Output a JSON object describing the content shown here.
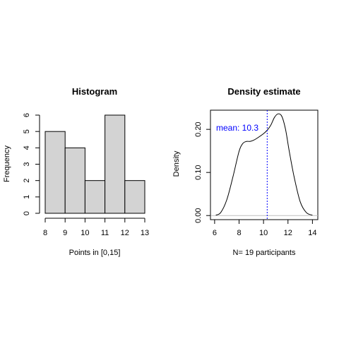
{
  "chart_data": [
    {
      "type": "bar",
      "title": "Histogram",
      "xlabel": "Points in [0,15]",
      "ylabel": "Frequency",
      "bins": [
        {
          "start": 8,
          "end": 9,
          "count": 5
        },
        {
          "start": 9,
          "end": 10,
          "count": 4
        },
        {
          "start": 10,
          "end": 11,
          "count": 2
        },
        {
          "start": 11,
          "end": 12,
          "count": 6
        },
        {
          "start": 12,
          "end": 13,
          "count": 2
        }
      ],
      "x_ticks": [
        8,
        9,
        10,
        11,
        12,
        13
      ],
      "y_ticks": [
        0,
        1,
        2,
        3,
        4,
        5,
        6
      ],
      "xlim": [
        8,
        13
      ],
      "ylim": [
        0,
        6
      ],
      "bar_color": "#d3d3d3",
      "grid": false
    },
    {
      "type": "line",
      "title": "Density estimate",
      "xlabel": "N= 19 participants",
      "ylabel": "Density",
      "x": [
        6.1,
        6.5,
        7.0,
        7.5,
        8.0,
        8.3,
        8.6,
        8.9,
        9.2,
        9.5,
        10.0,
        10.3,
        10.6,
        10.9,
        11.2,
        11.5,
        11.8,
        12.1,
        12.5,
        13.0,
        13.5,
        14.0
      ],
      "y": [
        0.001,
        0.007,
        0.037,
        0.09,
        0.149,
        0.167,
        0.172,
        0.172,
        0.175,
        0.18,
        0.19,
        0.198,
        0.21,
        0.228,
        0.236,
        0.23,
        0.2,
        0.15,
        0.09,
        0.032,
        0.007,
        0.001
      ],
      "x_ticks": [
        6,
        8,
        10,
        12,
        14
      ],
      "y_ticks": [
        0.0,
        0.1,
        0.2
      ],
      "y_tick_labels": [
        "0.00",
        "0.10",
        "0.20"
      ],
      "xlim": [
        5.66,
        14.44
      ],
      "ylim": [
        -0.0095,
        0.2445
      ],
      "mean": 10.3,
      "mean_label": "mean: 10.3",
      "mean_color": "#0000ff",
      "baseline_color": "#bebebe",
      "grid": false
    }
  ]
}
